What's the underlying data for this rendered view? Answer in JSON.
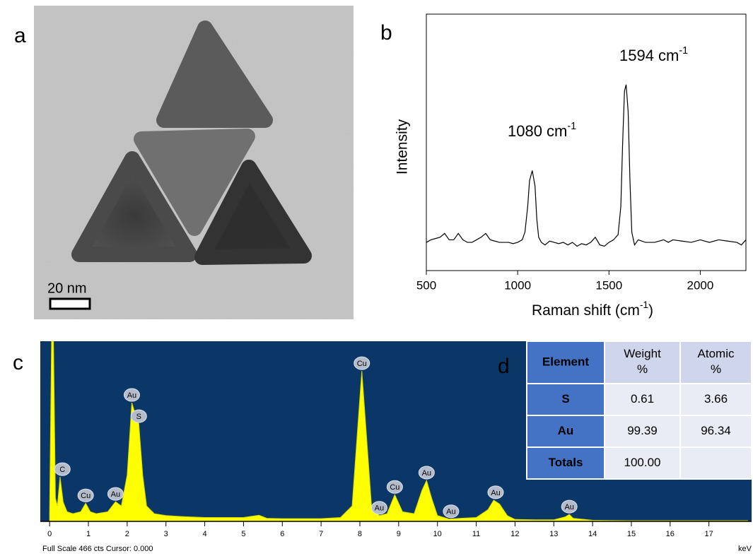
{
  "panel_labels": [
    "a",
    "b",
    "c",
    "d"
  ],
  "tem": {
    "scale_bar": "20 nm"
  },
  "chart_data": [
    {
      "type": "line",
      "color": "#000000",
      "ylabel": "Intensity",
      "xlabel": {
        "text": "Raman shift (cm",
        "sup": "-1",
        "tail": ")"
      },
      "annotations": [
        {
          "text": "1080 cm",
          "sup": "-1"
        },
        {
          "text": "1594 cm",
          "sup": "-1"
        }
      ],
      "xlim": [
        500,
        2250
      ],
      "xticks": [
        500,
        1000,
        1500,
        2000
      ],
      "ylim": [
        0,
        100
      ],
      "x": [
        500,
        525,
        550,
        575,
        600,
        625,
        650,
        675,
        700,
        725,
        750,
        775,
        800,
        825,
        850,
        875,
        900,
        925,
        950,
        975,
        1000,
        1025,
        1040,
        1055,
        1065,
        1080,
        1095,
        1105,
        1115,
        1130,
        1150,
        1175,
        1200,
        1225,
        1250,
        1275,
        1300,
        1325,
        1350,
        1375,
        1400,
        1425,
        1450,
        1475,
        1500,
        1525,
        1550,
        1565,
        1575,
        1585,
        1594,
        1605,
        1615,
        1625,
        1640,
        1660,
        1700,
        1750,
        1800,
        1825,
        1850,
        1900,
        1950,
        2000,
        2050,
        2100,
        2150,
        2200,
        2225,
        2250
      ],
      "values": [
        11,
        12,
        12.5,
        13,
        14.5,
        12,
        12,
        14.5,
        12,
        11,
        11,
        12,
        13,
        14.5,
        12,
        11.5,
        11,
        11,
        11,
        10.5,
        11,
        12,
        15,
        25,
        35,
        39,
        33,
        20,
        13,
        11,
        10,
        11.5,
        11,
        10.5,
        11,
        10,
        11,
        9.5,
        10.5,
        10,
        11,
        13,
        10,
        9.5,
        11,
        12,
        14,
        25,
        50,
        70,
        72.5,
        62,
        35,
        15,
        10,
        12,
        11,
        11,
        12,
        11,
        12,
        11.5,
        11,
        12,
        11,
        12,
        11.5,
        11,
        10,
        12
      ]
    },
    {
      "type": "area",
      "color": "#ffff00",
      "background": "#0b3768",
      "xlabel": "keV",
      "footer": "Full Scale 466 cts Cursor: 0.000",
      "xlim": [
        -0.24,
        18.1
      ],
      "ylim": [
        0,
        466
      ],
      "xticks": [
        0,
        1,
        2,
        3,
        4,
        5,
        6,
        7,
        8,
        9,
        10,
        11,
        12,
        13,
        14,
        15,
        16,
        17
      ],
      "x": [
        0,
        0.05,
        0.1,
        0.15,
        0.2,
        0.27,
        0.35,
        0.45,
        0.6,
        0.8,
        0.93,
        1.05,
        1.2,
        1.5,
        1.7,
        1.85,
        2.0,
        2.12,
        2.2,
        2.3,
        2.4,
        2.5,
        2.7,
        3.0,
        3.5,
        4,
        4.5,
        5,
        5.4,
        5.6,
        6,
        6.5,
        7,
        7.5,
        7.8,
        7.95,
        8.05,
        8.15,
        8.3,
        8.5,
        8.7,
        8.9,
        9.1,
        9.4,
        9.6,
        9.72,
        9.85,
        10.0,
        10.3,
        10.6,
        11.0,
        11.3,
        11.45,
        11.6,
        11.8,
        12.0,
        12.5,
        13.0,
        13.3,
        13.4,
        13.5,
        14,
        15,
        16,
        17,
        18
      ],
      "values": [
        20,
        466,
        466,
        60,
        40,
        115,
        50,
        25,
        20,
        25,
        47,
        25,
        20,
        25,
        51,
        40,
        120,
        307,
        280,
        252,
        120,
        40,
        20,
        15,
        12,
        10,
        10,
        10,
        16,
        8,
        7,
        7,
        7,
        10,
        40,
        250,
        389,
        250,
        40,
        15,
        20,
        69,
        25,
        20,
        80,
        106,
        60,
        15,
        6,
        8,
        10,
        30,
        55,
        45,
        15,
        5,
        4,
        4,
        12,
        18,
        8,
        3,
        2,
        2,
        2,
        2
      ],
      "peak_labels": [
        {
          "label": "C",
          "x": 0.33,
          "y": 115
        },
        {
          "label": "Cu",
          "x": 0.93,
          "y": 47
        },
        {
          "label": "Au",
          "x": 1.7,
          "y": 51
        },
        {
          "label": "Au",
          "x": 2.12,
          "y": 307
        },
        {
          "label": "S",
          "x": 2.3,
          "y": 252
        },
        {
          "label": "Cu",
          "x": 8.05,
          "y": 389
        },
        {
          "label": "Au",
          "x": 8.5,
          "y": 15
        },
        {
          "label": "Cu",
          "x": 8.9,
          "y": 69
        },
        {
          "label": "Au",
          "x": 9.72,
          "y": 106
        },
        {
          "label": "Au",
          "x": 10.35,
          "y": 6
        },
        {
          "label": "Au",
          "x": 11.5,
          "y": 55
        },
        {
          "label": "Au",
          "x": 13.4,
          "y": 18
        }
      ]
    }
  ],
  "table": {
    "header": [
      "Element",
      "Weight %",
      "Atomic %"
    ],
    "rows": [
      [
        "S",
        "0.61",
        "3.66"
      ],
      [
        "Au",
        "99.39",
        "96.34"
      ],
      [
        "Totals",
        "100.00"
      ]
    ]
  }
}
